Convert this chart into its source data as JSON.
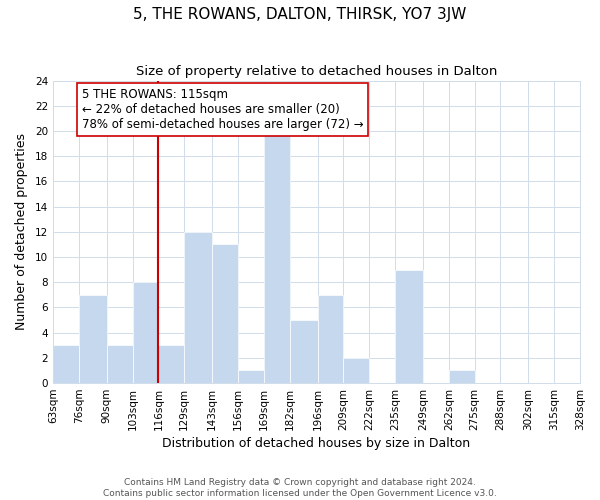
{
  "title": "5, THE ROWANS, DALTON, THIRSK, YO7 3JW",
  "subtitle": "Size of property relative to detached houses in Dalton",
  "xlabel": "Distribution of detached houses by size in Dalton",
  "ylabel": "Number of detached properties",
  "bin_edges": [
    63,
    76,
    90,
    103,
    116,
    129,
    143,
    156,
    169,
    182,
    196,
    209,
    222,
    235,
    249,
    262,
    275,
    288,
    302,
    315,
    328
  ],
  "bar_heights": [
    3,
    7,
    3,
    8,
    3,
    12,
    11,
    1,
    20,
    5,
    7,
    2,
    0,
    9,
    0,
    1,
    0,
    0,
    0,
    0
  ],
  "bar_color": "#c5d8ed",
  "bar_edge_color": "#ffffff",
  "vline_x": 116,
  "vline_color": "#cc0000",
  "ylim": [
    0,
    24
  ],
  "yticks": [
    0,
    2,
    4,
    6,
    8,
    10,
    12,
    14,
    16,
    18,
    20,
    22,
    24
  ],
  "annotation_title": "5 THE ROWANS: 115sqm",
  "annotation_line1": "← 22% of detached houses are smaller (20)",
  "annotation_line2": "78% of semi-detached houses are larger (72) →",
  "footer_line1": "Contains HM Land Registry data © Crown copyright and database right 2024.",
  "footer_line2": "Contains public sector information licensed under the Open Government Licence v3.0.",
  "title_fontsize": 11,
  "subtitle_fontsize": 9.5,
  "axis_label_fontsize": 9,
  "tick_fontsize": 7.5,
  "annotation_fontsize": 8.5,
  "footer_fontsize": 6.5,
  "background_color": "#ffffff",
  "grid_color": "#d0dce8"
}
